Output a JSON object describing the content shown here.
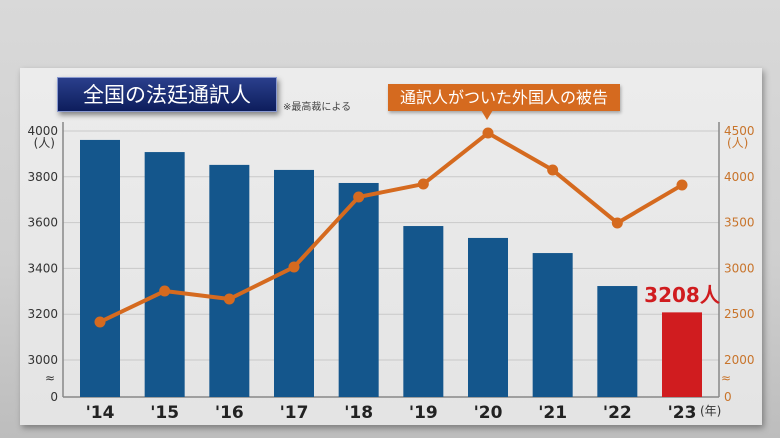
{
  "title": "全国の法廷通訳人",
  "note": "※最高裁による",
  "callout": "通訳人がついた外国人の被告",
  "highlight_label": "3208人",
  "colors": {
    "bar": "#14568c",
    "bar_highlight": "#d01c1f",
    "line": "#d56a1f",
    "right_axis": "#c8742b"
  },
  "chart_data": {
    "type": "bar+line",
    "title": "全国の法廷通訳人",
    "categories": [
      "'14",
      "'15",
      "'16",
      "'17",
      "'18",
      "'19",
      "'20",
      "'21",
      "'22",
      "'23"
    ],
    "x_unit": "(年)",
    "series": [
      {
        "name": "全国の法廷通訳人",
        "type": "bar",
        "axis": "left",
        "values": [
          3961,
          3908,
          3852,
          3830,
          3773,
          3585,
          3533,
          3467,
          3323,
          3208
        ]
      },
      {
        "name": "通訳人がついた外国人の被告",
        "type": "line",
        "axis": "right",
        "values": [
          2415,
          2753,
          2666,
          3015,
          3780,
          3921,
          4478,
          4074,
          3496,
          3910
        ]
      }
    ],
    "left_axis": {
      "unit": "(人)",
      "ticks": [
        "4000",
        "3800",
        "3600",
        "3400",
        "3200",
        "3000",
        "0"
      ],
      "ylim": [
        3000,
        4000
      ],
      "broken": true
    },
    "right_axis": {
      "unit": "(人)",
      "ticks": [
        "4500",
        "4000",
        "3500",
        "3000",
        "2500",
        "2000",
        "0"
      ],
      "ylim": [
        2000,
        4500
      ],
      "broken": true
    },
    "grid": true
  }
}
